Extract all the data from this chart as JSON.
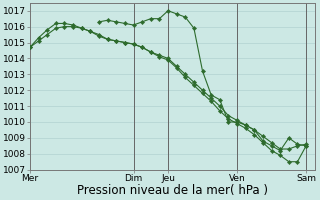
{
  "background_color": "#cce8e4",
  "grid_color": "#aacccc",
  "line_color": "#2d6b2d",
  "marker_color": "#2d6b2d",
  "ylim": [
    1007,
    1017.5
  ],
  "yticks": [
    1007,
    1008,
    1009,
    1010,
    1011,
    1012,
    1013,
    1014,
    1015,
    1016,
    1017
  ],
  "xlabel": "Pression niveau de la mer( hPa )",
  "xlabel_fontsize": 8.5,
  "tick_fontsize": 6.5,
  "day_labels": [
    "Mer",
    "Dim",
    "Jeu",
    "Ven",
    "Sam"
  ],
  "day_positions": [
    0,
    12,
    16,
    24,
    32
  ],
  "vline_positions": [
    0,
    12,
    16,
    24,
    32
  ],
  "xlim": [
    0,
    33
  ],
  "series": [
    {
      "x": [
        0,
        1,
        2,
        3,
        4,
        5,
        6,
        7,
        8,
        9,
        10,
        11,
        12,
        13,
        14,
        15,
        16,
        17,
        18,
        19,
        20,
        21,
        22,
        23,
        24,
        25,
        26,
        27,
        28,
        29,
        30,
        31,
        32
      ],
      "y": [
        1014.7,
        1015.1,
        1015.5,
        1015.9,
        1016.0,
        1016.0,
        1015.9,
        1015.7,
        1015.5,
        1015.2,
        1015.1,
        1015.0,
        1014.9,
        1014.7,
        1014.4,
        1014.2,
        1014.0,
        1013.5,
        1013.0,
        1012.5,
        1012.0,
        1011.5,
        1011.0,
        1010.4,
        1010.1,
        1009.8,
        1009.5,
        1009.1,
        1008.7,
        1008.3,
        1008.3,
        1008.5,
        1008.6
      ]
    },
    {
      "x": [
        0,
        1,
        2,
        3,
        4,
        5,
        6,
        7,
        8,
        9,
        10,
        11,
        12,
        13,
        14,
        15,
        16,
        17,
        18,
        19,
        20,
        21,
        22,
        23,
        24,
        25,
        26,
        27,
        28,
        29,
        30,
        31,
        32
      ],
      "y": [
        1014.7,
        1015.3,
        1015.8,
        1016.2,
        1016.2,
        1016.1,
        1015.9,
        1015.7,
        1015.4,
        1015.2,
        1015.1,
        1015.0,
        1014.9,
        1014.7,
        1014.4,
        1014.1,
        1013.9,
        1013.4,
        1012.8,
        1012.3,
        1011.8,
        1011.3,
        1010.7,
        1010.2,
        1009.9,
        1009.6,
        1009.2,
        1008.7,
        1008.2,
        1007.9,
        1007.5,
        1007.5,
        1008.5
      ]
    },
    {
      "x": [
        8,
        9,
        10,
        11,
        12,
        13,
        14,
        15,
        16,
        17,
        18,
        19,
        20,
        21,
        22,
        23,
        24,
        25,
        26,
        27,
        28,
        29,
        30,
        31,
        32
      ],
      "y": [
        1016.3,
        1016.4,
        1016.3,
        1016.2,
        1016.1,
        1016.3,
        1016.5,
        1016.5,
        1017.0,
        1016.8,
        1016.6,
        1015.9,
        1013.2,
        1011.7,
        1011.4,
        1010.0,
        1010.0,
        1009.8,
        1009.5,
        1008.8,
        1008.5,
        1008.2,
        1009.0,
        1008.6,
        1008.5
      ]
    }
  ]
}
